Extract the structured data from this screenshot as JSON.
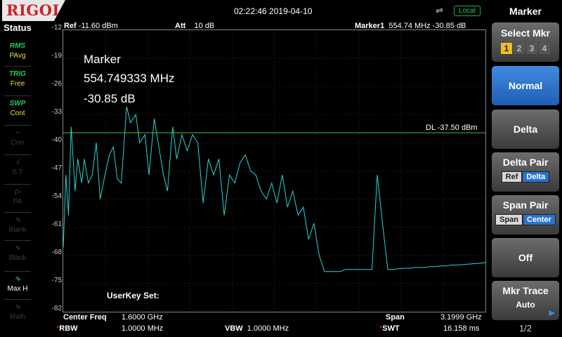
{
  "brand": "RIGOL",
  "datetime": "02:22:46 2019-04-10",
  "local_label": "Local",
  "status": {
    "title": "Status",
    "items": [
      {
        "icon": "RMS",
        "label": "PAvg",
        "state": "on"
      },
      {
        "icon": "TRIG",
        "label": "Free",
        "state": "on"
      },
      {
        "icon": "SWP",
        "label": "Cont",
        "state": "on"
      },
      {
        "icon": "~",
        "label": "Corr",
        "state": "off"
      },
      {
        "icon": "√",
        "label": "S.T",
        "state": "off"
      },
      {
        "icon": "▷",
        "label": "PA",
        "state": "off"
      },
      {
        "icon": "∿",
        "label": "Blank",
        "state": "off"
      },
      {
        "icon": "∿",
        "label": "Blank",
        "state": "off"
      },
      {
        "icon": "∿",
        "label": "Max H",
        "state": "onm"
      },
      {
        "icon": "∿",
        "label": "Math",
        "state": "off"
      }
    ]
  },
  "header": {
    "ref_label": "Ref",
    "ref_value": "-11.60 dBm",
    "att_label": "Att",
    "att_value": "10 dB",
    "marker_label": "Marker1",
    "marker_value": "554.74 MHz  -30.85 dB"
  },
  "marker_readout": {
    "line1": "Marker",
    "line2": "554.749333 MHz",
    "line3": "-30.85 dB"
  },
  "display_line": "DL -37.50 dBm",
  "userkey": "UserKey Set:",
  "bottom": {
    "cf_label": "Center Freq",
    "cf_value": "1.6000 GHz",
    "span_label": "Span",
    "span_value": "3.1999 GHz",
    "rbw_label": "RBW",
    "rbw_value": "1.0000 MHz",
    "vbw_label": "VBW",
    "vbw_value": "1.0000 MHz",
    "swt_label": "SWT",
    "swt_value": "16.158 ms"
  },
  "menu": {
    "title": "Marker",
    "select_mkr": "Select Mkr",
    "mkr_numbers": [
      "1",
      "2",
      "3",
      "4"
    ],
    "normal": "Normal",
    "delta": "Delta",
    "delta_pair": "Delta Pair",
    "delta_pair_opts": [
      "Ref",
      "Delta"
    ],
    "span_pair": "Span Pair",
    "span_pair_opts": [
      "Span",
      "Center"
    ],
    "off": "Off",
    "mkr_trace": "Mkr Trace",
    "mkr_trace_value": "Auto",
    "page": "1/2"
  },
  "chart_data": {
    "type": "line",
    "ylim": [
      -82,
      -12
    ],
    "yticks": [
      "-12",
      "-19",
      "-26",
      "-33",
      "-40",
      "-47",
      "-54",
      "-61",
      "-68",
      "-75",
      "-82"
    ],
    "xlim": [
      0,
      3.1999
    ],
    "display_line_db": -37.5,
    "trace_color": "#2ad4d4",
    "dl_color": "#3fbf3f",
    "series": [
      {
        "x": [
          0,
          0.02,
          0.04,
          0.06,
          0.09,
          0.11,
          0.14,
          0.16,
          0.19,
          0.22,
          0.25,
          0.28,
          0.31,
          0.35,
          0.38,
          0.41,
          0.44,
          0.48,
          0.51,
          0.55,
          0.58,
          0.62,
          0.65,
          0.69,
          0.72,
          0.76,
          0.79,
          0.83,
          0.86,
          0.9,
          0.94,
          0.98,
          1.02,
          1.06,
          1.1,
          1.14,
          1.18,
          1.22,
          1.26,
          1.3,
          1.34,
          1.38,
          1.42,
          1.46,
          1.5,
          1.54,
          1.58,
          1.62,
          1.66,
          1.7,
          1.74,
          1.78,
          1.82,
          1.86,
          1.9,
          1.94,
          1.98,
          2.02,
          2.06,
          2.1,
          2.14,
          2.18,
          2.22,
          2.26,
          2.3,
          2.34,
          2.38,
          2.42,
          2.46,
          2.5,
          2.54,
          2.58,
          2.62,
          2.66,
          2.7,
          2.74,
          2.78,
          2.82,
          2.86,
          2.9,
          2.94,
          2.98,
          3.02,
          3.06,
          3.1,
          3.14,
          3.1999
        ],
        "y": [
          -66,
          -48,
          -58,
          -36,
          -52,
          -44,
          -50,
          -44,
          -50,
          -48,
          -40,
          -54,
          -49,
          -43,
          -41,
          -49,
          -50,
          -31,
          -35,
          -33,
          -40,
          -38,
          -48,
          -34,
          -40,
          -48,
          -52,
          -36,
          -44,
          -38,
          -42,
          -38,
          -40,
          -55,
          -44,
          -48,
          -44,
          -58,
          -48,
          -50,
          -45,
          -43,
          -47,
          -48,
          -52,
          -54,
          -50,
          -55,
          -48,
          -56,
          -52,
          -58,
          -56,
          -64,
          -60,
          -68,
          -72,
          -72,
          -72,
          -72,
          -71.5,
          -71.5,
          -71.5,
          -71.5,
          -71.5,
          -71.5,
          -48,
          -60,
          -71.5,
          -71.5,
          -71.3,
          -71.2,
          -71.2,
          -71,
          -71,
          -71,
          -70.8,
          -70.8,
          -70.6,
          -70.6,
          -70.4,
          -70.4,
          -70.3,
          -70.2,
          -70.1,
          -70,
          -69.8
        ]
      }
    ]
  }
}
